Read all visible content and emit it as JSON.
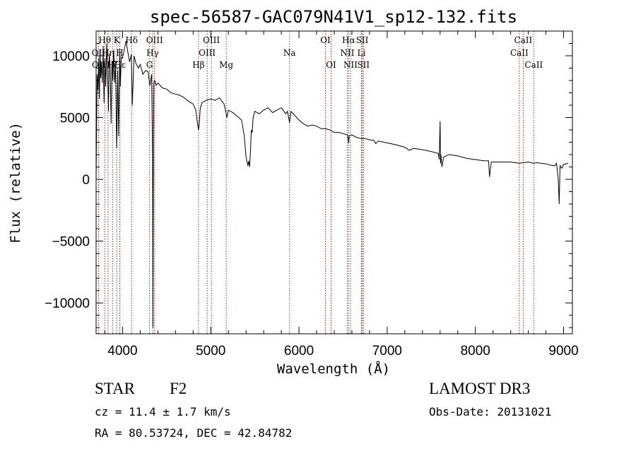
{
  "chart_data": {
    "type": "line",
    "title": "spec-56587-GAC079N41V1_sp12-132.fits",
    "xlabel": "Wavelength (Å)",
    "ylabel": "Flux (relative)",
    "xlim": [
      3700,
      9100
    ],
    "ylim": [
      -12500,
      12000
    ],
    "x_ticks": [
      4000,
      5000,
      6000,
      7000,
      8000,
      9000
    ],
    "x_tick_labels": [
      "4000",
      "5000",
      "6000",
      "7000",
      "8000",
      "9000"
    ],
    "y_ticks": [
      -10000,
      -5000,
      0,
      5000,
      10000
    ],
    "y_tick_labels": [
      "−10000",
      "−5000",
      "0",
      "5000",
      "10000"
    ],
    "series": [
      {
        "name": "spectrum",
        "x": [
          3700,
          3705,
          3712,
          3720,
          3730,
          3738,
          3745,
          3752,
          3760,
          3770,
          3780,
          3790,
          3800,
          3810,
          3820,
          3830,
          3840,
          3850,
          3860,
          3870,
          3880,
          3890,
          3900,
          3910,
          3920,
          3933,
          3945,
          3955,
          3968,
          3975,
          3985,
          4000,
          4020,
          4040,
          4060,
          4080,
          4100,
          4110,
          4130,
          4150,
          4180,
          4200,
          4230,
          4260,
          4290,
          4310,
          4330,
          4340,
          4345,
          4350,
          4355,
          4365,
          4380,
          4400,
          4450,
          4500,
          4550,
          4600,
          4650,
          4700,
          4750,
          4800,
          4830,
          4850,
          4861,
          4868,
          4880,
          4900,
          4950,
          5000,
          5050,
          5100,
          5150,
          5170,
          5183,
          5200,
          5250,
          5300,
          5350,
          5380,
          5400,
          5420,
          5430,
          5440,
          5450,
          5460,
          5470,
          5480,
          5500,
          5550,
          5600,
          5650,
          5700,
          5750,
          5800,
          5850,
          5870,
          5893,
          5910,
          5950,
          6000,
          6050,
          6100,
          6150,
          6200,
          6250,
          6300,
          6350,
          6400,
          6450,
          6500,
          6550,
          6560,
          6563,
          6570,
          6600,
          6650,
          6700,
          6750,
          6800,
          6850,
          6870,
          6900,
          7000,
          7100,
          7200,
          7250,
          7300,
          7400,
          7500,
          7550,
          7580,
          7590,
          7600,
          7605,
          7610,
          7620,
          7640,
          7700,
          7800,
          7900,
          8000,
          8100,
          8150,
          8160,
          8180,
          8200,
          8300,
          8400,
          8500,
          8542,
          8600,
          8662,
          8700,
          8800,
          8850,
          8900,
          8920,
          8940,
          8950,
          8960,
          8980,
          9000,
          9050
        ],
        "values": [
          0,
          4000,
          8500,
          7200,
          9800,
          6500,
          10500,
          8200,
          9500,
          7800,
          10800,
          6200,
          9800,
          7500,
          11000,
          8800,
          5500,
          10200,
          9000,
          4500,
          9600,
          8000,
          10500,
          7800,
          9200,
          2500,
          8800,
          3500,
          10600,
          7500,
          9900,
          9800,
          10500,
          11200,
          10300,
          9500,
          10100,
          6000,
          10000,
          9400,
          9000,
          9300,
          8500,
          8800,
          8700,
          7600,
          8500,
          2000,
          -12000,
          3000,
          7800,
          8000,
          7600,
          7800,
          7400,
          7300,
          7000,
          6900,
          6800,
          6600,
          6300,
          6100,
          5600,
          4500,
          4000,
          4400,
          5700,
          6200,
          6400,
          6500,
          6400,
          6600,
          6100,
          5500,
          5000,
          5600,
          5400,
          5100,
          4800,
          3500,
          1800,
          1100,
          1500,
          1000,
          2200,
          4000,
          3800,
          5000,
          5500,
          5300,
          5600,
          5800,
          5400,
          5600,
          5800,
          5300,
          5500,
          4600,
          5500,
          5200,
          4800,
          4500,
          4300,
          4400,
          4300,
          4100,
          4100,
          4000,
          3800,
          3800,
          3700,
          3600,
          3200,
          2900,
          3500,
          3600,
          3400,
          3300,
          3300,
          3200,
          3150,
          2900,
          3100,
          2950,
          2800,
          2600,
          2350,
          2500,
          2400,
          2250,
          2150,
          2100,
          1600,
          4700,
          1300,
          2000,
          1000,
          1800,
          2000,
          1900,
          1700,
          1600,
          1500,
          1500,
          200,
          1400,
          1400,
          1400,
          1400,
          1300,
          1350,
          1400,
          1300,
          1350,
          1250,
          1150,
          1100,
          1300,
          0,
          -2000,
          1100,
          900,
          1200,
          1300
        ]
      }
    ],
    "spectral_lines": [
      {
        "label": "Hθ",
        "wavelength": 3798,
        "row": 0
      },
      {
        "label": "OII",
        "wavelength": 3727,
        "row": 1
      },
      {
        "label": "OII",
        "wavelength": 3729,
        "row": 2
      },
      {
        "label": "Hη",
        "wavelength": 3835,
        "row": 1
      },
      {
        "label": "Hζ",
        "wavelength": 3889,
        "row": 2
      },
      {
        "label": "K",
        "wavelength": 3934,
        "row": 0
      },
      {
        "label": "H",
        "wavelength": 3968,
        "row": 1
      },
      {
        "label": "Hε",
        "wavelength": 3970,
        "row": 2
      },
      {
        "label": "Hδ",
        "wavelength": 4102,
        "row": 0
      },
      {
        "label": "OIII",
        "wavelength": 4363,
        "row": 0
      },
      {
        "label": "Hγ",
        "wavelength": 4341,
        "row": 1
      },
      {
        "label": "G",
        "wavelength": 4305,
        "row": 2
      },
      {
        "label": "Hβ",
        "wavelength": 4861,
        "row": 2
      },
      {
        "label": "OIII",
        "wavelength": 5007,
        "row": 0
      },
      {
        "label": "OIII",
        "wavelength": 4959,
        "row": 1
      },
      {
        "label": "Mg",
        "wavelength": 5175,
        "row": 2
      },
      {
        "label": "Na",
        "wavelength": 5893,
        "row": 1
      },
      {
        "label": "OI",
        "wavelength": 6300,
        "row": 0
      },
      {
        "label": "OI",
        "wavelength": 6364,
        "row": 2
      },
      {
        "label": "Hα",
        "wavelength": 6563,
        "row": 0
      },
      {
        "label": "NII",
        "wavelength": 6548,
        "row": 1
      },
      {
        "label": "NII",
        "wavelength": 6584,
        "row": 2
      },
      {
        "label": "SII",
        "wavelength": 6717,
        "row": 0
      },
      {
        "label": "Li",
        "wavelength": 6708,
        "row": 1
      },
      {
        "label": "SII",
        "wavelength": 6731,
        "row": 2
      },
      {
        "label": "CaII",
        "wavelength": 8542,
        "row": 0
      },
      {
        "label": "CaII",
        "wavelength": 8498,
        "row": 1
      },
      {
        "label": "CaII",
        "wavelength": 8662,
        "row": 2
      }
    ]
  },
  "info": {
    "object_class": "STAR",
    "subclass": "F2",
    "redshift": "cz = 11.4 ± 1.7 km/s",
    "coordinates": "RA =  80.53724, DEC =  42.84782",
    "survey": "LAMOST DR3",
    "obs_date": "Obs-Date: 20131021"
  }
}
